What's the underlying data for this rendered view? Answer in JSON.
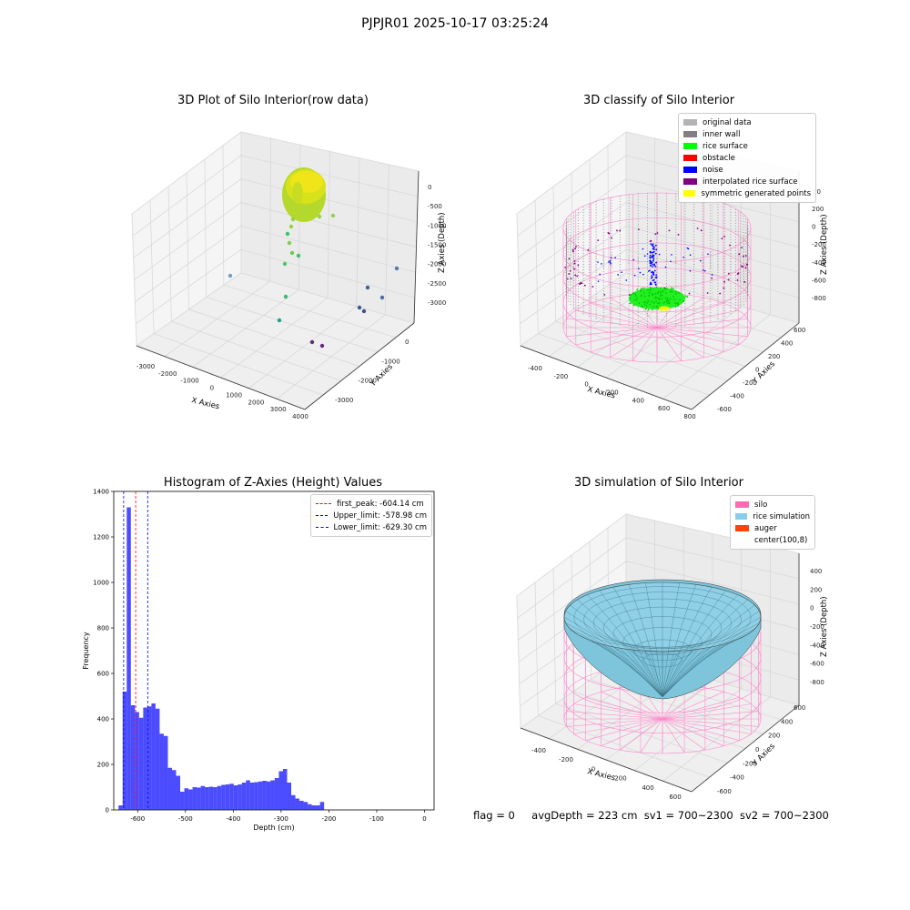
{
  "figure": {
    "title": "PJPJR01 2025-10-17 03:25:24"
  },
  "panels": {
    "raw": {
      "title": "3D Plot of Silo Interior(row data)",
      "xlabel": "X Axies",
      "ylabel": "Y Axies",
      "zlabel": "Z Axies (Depth)",
      "xticks": [
        "-3000",
        "-2000",
        "-1000",
        "0",
        "1000",
        "2000",
        "3000",
        "4000"
      ],
      "yticks": [
        "0",
        "-1000",
        "-2000",
        "-3000"
      ],
      "zticks": [
        "0",
        "-500",
        "-1000",
        "-1500",
        "-2000",
        "-2500",
        "-3000"
      ]
    },
    "classify": {
      "title": "3D classify of Silo Interior",
      "xlabel": "X Axies",
      "ylabel": "Y Axies",
      "zlabel": "Z Axies (Depth)",
      "xticks": [
        "-400",
        "-200",
        "0",
        "200",
        "400",
        "600",
        "800"
      ],
      "yticks": [
        "600",
        "400",
        "200",
        "0",
        "-200",
        "-400",
        "-600"
      ],
      "zticks": [
        "200",
        "0",
        "-200",
        "-400",
        "-600",
        "-800"
      ],
      "legend": [
        {
          "label": "original data",
          "color": "#b3b3b3"
        },
        {
          "label": "inner wall",
          "color": "#808080"
        },
        {
          "label": "rice surface",
          "color": "#00ff00"
        },
        {
          "label": "obstacle",
          "color": "#ff0000"
        },
        {
          "label": "noise",
          "color": "#0000ff"
        },
        {
          "label": "interpolated rice surface",
          "color": "#800080"
        },
        {
          "label": "symmetric generated points",
          "color": "#ffff00"
        }
      ],
      "stray_tick": "00"
    },
    "simulation": {
      "title": "3D simulation of Silo Interior",
      "xlabel": "X Axies",
      "ylabel": "Y Axies",
      "zlabel": "Z Axies (Depth)",
      "xticks": [
        "-400",
        "-200",
        "0",
        "200",
        "400",
        "600"
      ],
      "yticks": [
        "600",
        "400",
        "200",
        "0",
        "-200",
        "-400",
        "-600"
      ],
      "zticks": [
        "400",
        "200",
        "0",
        "-200",
        "-400",
        "-600",
        "-800"
      ],
      "legend": [
        {
          "label": "silo",
          "color": "#ff69b4"
        },
        {
          "label": "rice simulation",
          "color": "#87ceeb"
        },
        {
          "label": "auger",
          "color": "#ff4500"
        },
        {
          "label": "center(100,8)",
          "color": "#ffffff"
        }
      ]
    },
    "status": {
      "flag": "flag = 0",
      "avg_depth": "avgDepth = 223 cm",
      "sv1": "sv1 = 700~2300",
      "sv2": "sv2 = 700~2300"
    }
  },
  "chart_data": [
    {
      "type": "bar",
      "title": "Histogram of Z-Axies (Height) Values",
      "xlabel": "Depth (cm)",
      "ylabel": "Frequency",
      "xlim": [
        -650,
        20
      ],
      "ylim": [
        0,
        1400
      ],
      "xticks": [
        -600,
        -500,
        -400,
        -300,
        -200,
        -100,
        0
      ],
      "yticks": [
        0,
        200,
        400,
        600,
        800,
        1000,
        1200,
        1400
      ],
      "bin_width": 8.6,
      "bin_start": -640,
      "values": [
        20,
        520,
        1330,
        460,
        430,
        405,
        450,
        455,
        468,
        445,
        335,
        325,
        185,
        175,
        150,
        80,
        95,
        90,
        100,
        98,
        105,
        100,
        102,
        100,
        105,
        110,
        112,
        115,
        108,
        112,
        120,
        130,
        120,
        122,
        125,
        128,
        125,
        130,
        140,
        170,
        180,
        120,
        65,
        50,
        40,
        35,
        25,
        20,
        20,
        35
      ],
      "color": "#0000ff",
      "vlines": [
        {
          "label": "first_peak: -604.14 cm",
          "x": -604.14,
          "color": "#ff0000"
        },
        {
          "label": "Upper_limit: -578.98 cm",
          "x": -578.98,
          "color": "#0000ff"
        },
        {
          "label": "Lower_limit: -629.30 cm",
          "x": -629.3,
          "color": "#0000ff"
        }
      ],
      "legend_position": "top-right"
    }
  ]
}
